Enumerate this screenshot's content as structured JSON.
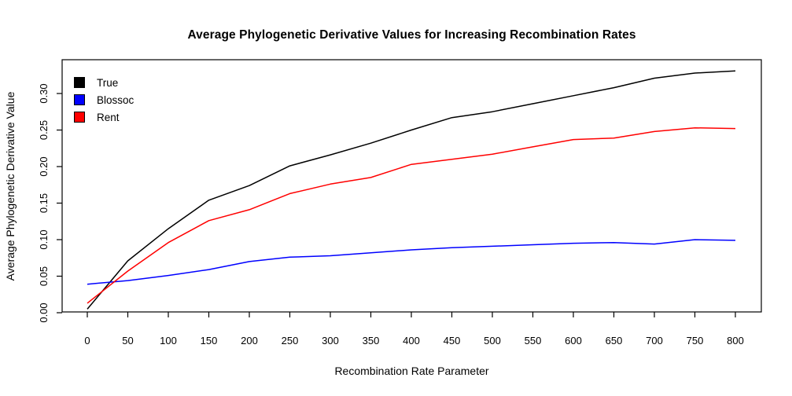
{
  "chart_data": {
    "type": "line",
    "title": "Average Phylogenetic Derivative Values for Increasing Recombination Rates",
    "xlabel": "Recombination Rate Parameter",
    "ylabel": "Average Phylogenetic Derivative Value",
    "x": [
      0,
      50,
      100,
      150,
      200,
      250,
      300,
      350,
      400,
      450,
      500,
      550,
      600,
      650,
      700,
      750,
      800
    ],
    "series": [
      {
        "name": "True",
        "color": "#000000",
        "values": [
          0.005,
          0.071,
          0.115,
          0.154,
          0.174,
          0.201,
          0.216,
          0.232,
          0.25,
          0.267,
          0.275,
          0.286,
          0.297,
          0.308,
          0.321,
          0.328,
          0.331
        ]
      },
      {
        "name": "Blossoc",
        "color": "#0000ff",
        "values": [
          0.039,
          0.044,
          0.051,
          0.059,
          0.07,
          0.076,
          0.078,
          0.082,
          0.086,
          0.089,
          0.091,
          0.093,
          0.095,
          0.096,
          0.094,
          0.1,
          0.099
        ]
      },
      {
        "name": "Rent",
        "color": "#ff0000",
        "values": [
          0.013,
          0.057,
          0.096,
          0.126,
          0.141,
          0.163,
          0.176,
          0.185,
          0.203,
          0.21,
          0.217,
          0.227,
          0.237,
          0.239,
          0.248,
          0.253,
          0.252
        ]
      }
    ],
    "x_ticks": [
      "0",
      "50",
      "100",
      "150",
      "200",
      "250",
      "300",
      "350",
      "400",
      "450",
      "500",
      "550",
      "600",
      "650",
      "700",
      "750",
      "800"
    ],
    "y_ticks": [
      "0.00",
      "0.05",
      "0.10",
      "0.15",
      "0.20",
      "0.25",
      "0.30"
    ],
    "y_tick_values": [
      0.0,
      0.05,
      0.1,
      0.15,
      0.2,
      0.25,
      0.3
    ],
    "xlim": [
      0,
      800
    ],
    "ylim": [
      0,
      0.346
    ],
    "grid": "off",
    "legend_position": "top-left"
  }
}
